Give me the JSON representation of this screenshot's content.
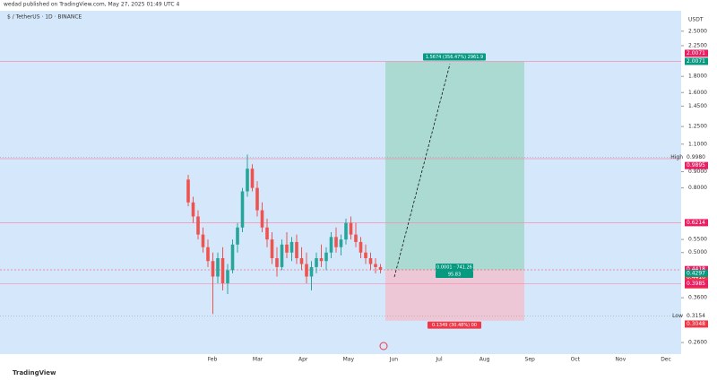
{
  "header": "wedad published on TradingView.com, May 27, 2025 01:49 UTC 4",
  "chart_data": {
    "type": "candlestick",
    "title": "$ / TetherUS · 1D · BINANCE",
    "currency": "USDT",
    "log_scale": true,
    "ylim": [
      0.239,
      2.9
    ],
    "yticks": [
      {
        "value": 2.5,
        "label": "2.5000"
      },
      {
        "value": 2.25,
        "label": "2.2500"
      },
      {
        "value": 1.8,
        "label": "1.8000"
      },
      {
        "value": 1.6,
        "label": "1.6000"
      },
      {
        "value": 1.45,
        "label": "1.4500"
      },
      {
        "value": 1.25,
        "label": "1.2500"
      },
      {
        "value": 1.1,
        "label": "1.1000"
      },
      {
        "value": 0.9,
        "label": "0.9000"
      },
      {
        "value": 0.8,
        "label": "0.8000"
      },
      {
        "value": 0.55,
        "label": "0.5500"
      },
      {
        "value": 0.5,
        "label": "0.5000"
      },
      {
        "value": 0.36,
        "label": "0.3600"
      },
      {
        "value": 0.26,
        "label": "0.2600"
      }
    ],
    "categories": [
      "Feb",
      "Mar",
      "Apr",
      "May",
      "Jun",
      "Jul",
      "Aug",
      "Sep",
      "Oct",
      "Nov",
      "Dec"
    ],
    "up_color": "#26a69a",
    "down_color": "#ef5350",
    "open": [
      0.85,
      0.72,
      0.65,
      0.57,
      0.52,
      0.47,
      0.42,
      0.48,
      0.4,
      0.44,
      0.53,
      0.6,
      0.78,
      0.92,
      0.8,
      0.68,
      0.6,
      0.55,
      0.48,
      0.45,
      0.53,
      0.5,
      0.54,
      0.48,
      0.46,
      0.42,
      0.45,
      0.48,
      0.47,
      0.5,
      0.56,
      0.52,
      0.55,
      0.62,
      0.57,
      0.54,
      0.5,
      0.48,
      0.46,
      0.45
    ],
    "high": [
      0.88,
      0.75,
      0.68,
      0.6,
      0.55,
      0.5,
      0.5,
      0.52,
      0.46,
      0.55,
      0.62,
      0.8,
      1.02,
      0.95,
      0.84,
      0.72,
      0.64,
      0.58,
      0.52,
      0.55,
      0.58,
      0.56,
      0.57,
      0.52,
      0.5,
      0.47,
      0.5,
      0.53,
      0.52,
      0.58,
      0.6,
      0.57,
      0.64,
      0.65,
      0.62,
      0.56,
      0.53,
      0.5,
      0.48,
      0.46
    ],
    "low": [
      0.7,
      0.62,
      0.55,
      0.5,
      0.45,
      0.32,
      0.4,
      0.38,
      0.37,
      0.43,
      0.5,
      0.58,
      0.75,
      0.78,
      0.65,
      0.58,
      0.52,
      0.46,
      0.42,
      0.44,
      0.48,
      0.47,
      0.46,
      0.44,
      0.4,
      0.38,
      0.43,
      0.45,
      0.44,
      0.48,
      0.5,
      0.49,
      0.53,
      0.55,
      0.52,
      0.48,
      0.46,
      0.44,
      0.43,
      0.43
    ],
    "close": [
      0.72,
      0.65,
      0.57,
      0.52,
      0.47,
      0.42,
      0.48,
      0.4,
      0.44,
      0.53,
      0.6,
      0.78,
      0.92,
      0.8,
      0.68,
      0.6,
      0.55,
      0.48,
      0.45,
      0.53,
      0.5,
      0.54,
      0.48,
      0.46,
      0.42,
      0.45,
      0.48,
      0.47,
      0.5,
      0.56,
      0.52,
      0.55,
      0.62,
      0.57,
      0.54,
      0.5,
      0.48,
      0.46,
      0.45,
      0.441
    ],
    "levels": [
      {
        "value": 2.0071,
        "label": "2.0071",
        "color": "#e91e63",
        "line": true
      },
      {
        "value": 2.0071,
        "label": "2.0071",
        "color": "#089981"
      },
      {
        "value": 0.998,
        "label": "0.9980",
        "tag": "High",
        "color": "#787b86"
      },
      {
        "value": 0.9895,
        "label": "0.9895",
        "color": "#e91e63",
        "line": true
      },
      {
        "value": 0.6214,
        "label": "0.6214",
        "color": "#e91e63",
        "line": true
      },
      {
        "value": 0.4418,
        "label": "0.4418",
        "color": "#e91e63"
      },
      {
        "value": 0.441,
        "label": "0.4410",
        "color": "#f23645",
        "sub": "18:19:50"
      },
      {
        "value": 0.4297,
        "label": "0.4297",
        "color": "#089981"
      },
      {
        "value": 0.3985,
        "label": "0.3985",
        "color": "#e91e63",
        "line": true
      },
      {
        "value": 0.3154,
        "label": "0.3154",
        "tag": "Low",
        "color": "#787b86"
      },
      {
        "value": 0.3048,
        "label": "0.3048",
        "color": "#f23645"
      }
    ],
    "position": {
      "entry": 0.441,
      "target": 2.0071,
      "stop": 0.3048,
      "target_label": "1.5674 (356.47%) 2961.9",
      "entry_label": "0.0001 · 741.26",
      "entry_sub": "95.83",
      "stop_label": "0.1349 (30.48%) 00"
    },
    "brand": "TradingView"
  }
}
